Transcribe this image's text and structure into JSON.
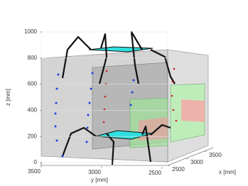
{
  "chart_data": {
    "type": "3d-scene",
    "zlabel": "z [mm]",
    "ylabel": "y [mm]",
    "xlabel": "x [mm]",
    "zlim": [
      0,
      1000
    ],
    "zticks": [
      0,
      200,
      400,
      600,
      800,
      1000
    ],
    "ylim": [
      3500,
      2500
    ],
    "yticks": [
      3500,
      3000,
      2500
    ],
    "xlim": [
      2500,
      3500
    ],
    "xticks": [
      2500,
      3000,
      3500
    ],
    "grid": true
  }
}
